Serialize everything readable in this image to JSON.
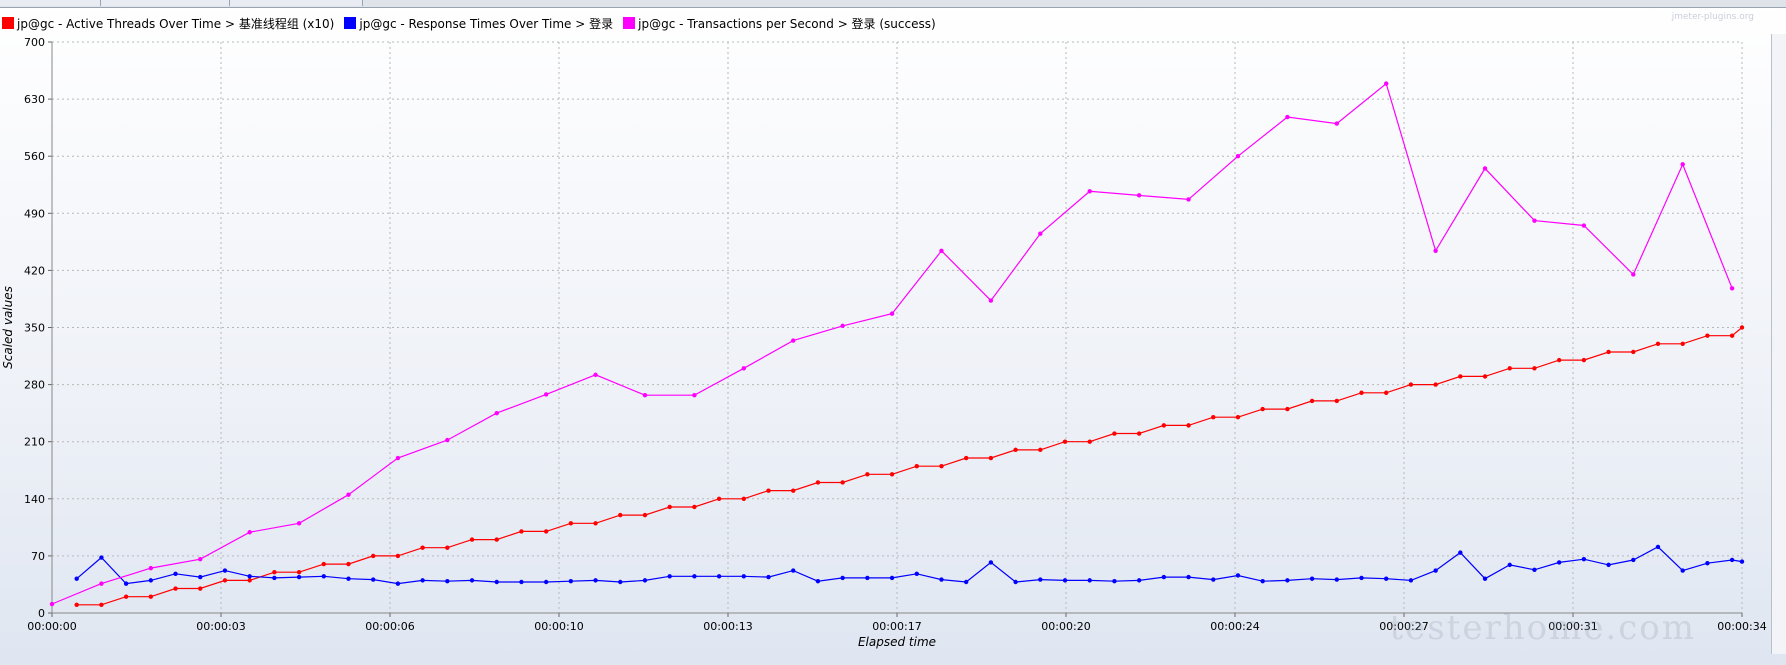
{
  "watermarks": {
    "top": "jmeter-plugins.org",
    "bottom": "testerhome.com"
  },
  "chart_data": {
    "type": "line",
    "xlabel": "Elapsed time",
    "ylabel": "Scaled values",
    "ylim": [
      0,
      700
    ],
    "yticks": [
      "0",
      "70",
      "140",
      "210",
      "280",
      "350",
      "420",
      "490",
      "560",
      "630",
      "700"
    ],
    "xlim": [
      0,
      34.2
    ],
    "xticks": [
      {
        "t": 0,
        "label": "00:00:00"
      },
      {
        "t": 3.42,
        "label": "00:00:03"
      },
      {
        "t": 6.84,
        "label": "00:00:06"
      },
      {
        "t": 10.26,
        "label": "00:00:10"
      },
      {
        "t": 13.68,
        "label": "00:00:13"
      },
      {
        "t": 17.1,
        "label": "00:00:17"
      },
      {
        "t": 20.52,
        "label": "00:00:20"
      },
      {
        "t": 23.94,
        "label": "00:00:24"
      },
      {
        "t": 27.36,
        "label": "00:00:27"
      },
      {
        "t": 30.78,
        "label": "00:00:31"
      },
      {
        "t": 34.2,
        "label": "00:00:34"
      }
    ],
    "grid": true,
    "legend_position": "top-left",
    "series": [
      {
        "name": "jp@gc - Active Threads Over Time > 基准线程组 (x10)",
        "color": "#ff0000",
        "x": [
          0.5,
          1,
          1.5,
          2,
          2.5,
          3,
          3.5,
          4,
          4.5,
          5,
          5.5,
          6,
          6.5,
          7,
          7.5,
          8,
          8.5,
          9,
          9.5,
          10,
          10.5,
          11,
          11.5,
          12,
          12.5,
          13,
          13.5,
          14,
          14.5,
          15,
          15.5,
          16,
          16.5,
          17,
          17.5,
          18,
          18.5,
          19,
          19.5,
          20,
          20.5,
          21,
          21.5,
          22,
          22.5,
          23,
          23.5,
          24,
          24.5,
          25,
          25.5,
          26,
          26.5,
          27,
          27.5,
          28,
          28.5,
          29,
          29.5,
          30,
          30.5,
          31,
          31.5,
          32,
          32.5,
          33,
          33.5,
          34,
          34.2
        ],
        "y": [
          10,
          10,
          20,
          20,
          30,
          30,
          40,
          40,
          50,
          50,
          60,
          60,
          70,
          70,
          80,
          80,
          90,
          90,
          100,
          100,
          110,
          110,
          120,
          120,
          130,
          130,
          140,
          140,
          150,
          150,
          160,
          160,
          170,
          170,
          180,
          180,
          190,
          190,
          200,
          200,
          210,
          210,
          220,
          220,
          230,
          230,
          240,
          240,
          250,
          250,
          260,
          260,
          270,
          270,
          280,
          280,
          290,
          290,
          300,
          300,
          310,
          310,
          320,
          320,
          330,
          330,
          340,
          340,
          350
        ]
      },
      {
        "name": "jp@gc - Response Times Over Time > 登录",
        "color": "#0000ff",
        "x": [
          0.5,
          1,
          1.5,
          2,
          2.5,
          3,
          3.5,
          4,
          4.5,
          5,
          5.5,
          6,
          6.5,
          7,
          7.5,
          8,
          8.5,
          9,
          9.5,
          10,
          10.5,
          11,
          11.5,
          12,
          12.5,
          13,
          13.5,
          14,
          14.5,
          15,
          15.5,
          16,
          16.5,
          17,
          17.5,
          18,
          18.5,
          19,
          19.5,
          20,
          20.5,
          21,
          21.5,
          22,
          22.5,
          23,
          23.5,
          24,
          24.5,
          25,
          25.5,
          26,
          26.5,
          27,
          27.5,
          28,
          28.5,
          29,
          29.5,
          30,
          30.5,
          31,
          31.5,
          32,
          32.5,
          33,
          33.5,
          34,
          34.2
        ],
        "y": [
          42,
          68,
          36,
          40,
          48,
          44,
          52,
          45,
          43,
          44,
          45,
          42,
          41,
          36,
          40,
          39,
          40,
          38,
          38,
          38,
          39,
          40,
          38,
          40,
          45,
          45,
          45,
          45,
          44,
          52,
          39,
          43,
          43,
          43,
          48,
          41,
          38,
          62,
          38,
          41,
          40,
          40,
          39,
          40,
          44,
          44,
          41,
          46,
          39,
          40,
          42,
          41,
          43,
          42,
          40,
          52,
          74,
          42,
          59,
          53,
          62,
          66,
          59,
          65,
          81,
          52,
          61,
          65,
          63
        ]
      },
      {
        "name": "jp@gc - Transactions per Second > 登录 (success)",
        "color": "#ff00ff",
        "x": [
          0,
          1,
          2,
          3,
          4,
          5,
          6,
          7,
          8,
          9,
          10,
          11,
          12,
          13,
          14,
          15,
          16,
          17,
          18,
          19,
          20,
          21,
          22,
          23,
          24,
          25,
          26,
          27,
          28,
          29,
          30,
          31,
          32,
          33,
          34
        ],
        "y": [
          11,
          36,
          55,
          66,
          99,
          110,
          145,
          190,
          212,
          245,
          268,
          292,
          267,
          267,
          300,
          334,
          352,
          367,
          444,
          383,
          465,
          517,
          512,
          507,
          560,
          608,
          600,
          649,
          444,
          545,
          481,
          475,
          415,
          550,
          398
        ]
      }
    ]
  }
}
